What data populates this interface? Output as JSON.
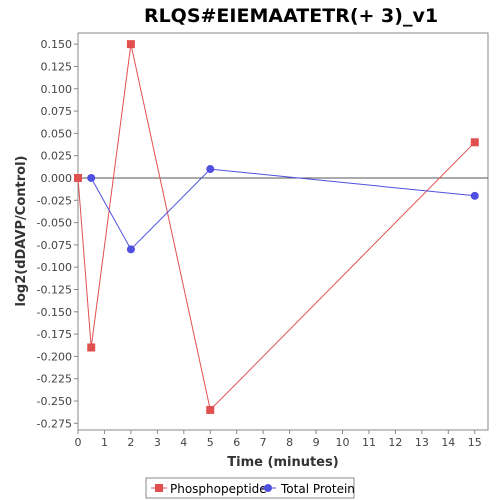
{
  "chart_data": {
    "type": "line",
    "title": "RLQS#EIEMAATETR(+ 3)_v1",
    "xlabel": "Time (minutes)",
    "ylabel": "log2(dDAVP/Control)",
    "xlim": [
      0,
      15.5
    ],
    "ylim": [
      -0.2825,
      0.1625
    ],
    "x_ticks": [
      0,
      1,
      2,
      3,
      4,
      5,
      6,
      7,
      8,
      9,
      10,
      11,
      12,
      13,
      14,
      15
    ],
    "y_ticks": [
      0.15,
      0.125,
      0.1,
      0.075,
      0.05,
      0.025,
      0.0,
      -0.025,
      -0.05,
      -0.075,
      -0.1,
      -0.125,
      -0.15,
      -0.175,
      -0.2,
      -0.225,
      -0.25,
      -0.275
    ],
    "y_tick_labels": [
      "0.150",
      "0.125",
      "0.100",
      "0.075",
      "0.050",
      "0.025",
      "0.000",
      "-0.025",
      "-0.050",
      "-0.075",
      "-0.100",
      "-0.125",
      "-0.150",
      "-0.175",
      "-0.200",
      "-0.225",
      "-0.250",
      "-0.275"
    ],
    "grid": false,
    "zero_line": true,
    "legend_position": "bottom",
    "series": [
      {
        "name": "Phosphopeptide",
        "color": "#e05050",
        "marker": "square",
        "x": [
          0,
          0.5,
          2,
          5,
          15
        ],
        "y": [
          0.0,
          -0.19,
          0.15,
          -0.26,
          0.04
        ]
      },
      {
        "name": "Total Protein",
        "color": "#5050e0",
        "marker": "circle",
        "x": [
          0.5,
          2,
          5,
          15
        ],
        "y": [
          0.0,
          -0.08,
          0.01,
          -0.02
        ]
      }
    ]
  }
}
